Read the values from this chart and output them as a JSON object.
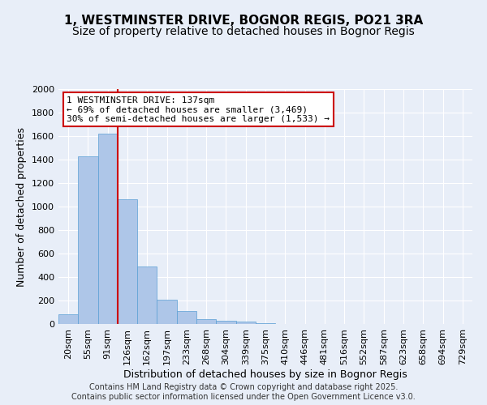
{
  "title_line1": "1, WESTMINSTER DRIVE, BOGNOR REGIS, PO21 3RA",
  "title_line2": "Size of property relative to detached houses in Bognor Regis",
  "xlabel": "Distribution of detached houses by size in Bognor Regis",
  "ylabel": "Number of detached properties",
  "bin_labels": [
    "20sqm",
    "55sqm",
    "91sqm",
    "126sqm",
    "162sqm",
    "197sqm",
    "233sqm",
    "268sqm",
    "304sqm",
    "339sqm",
    "375sqm",
    "410sqm",
    "446sqm",
    "481sqm",
    "516sqm",
    "552sqm",
    "587sqm",
    "623sqm",
    "658sqm",
    "694sqm",
    "729sqm"
  ],
  "bar_values": [
    85,
    1425,
    1620,
    1060,
    490,
    205,
    110,
    40,
    25,
    18,
    10,
    0,
    0,
    0,
    0,
    0,
    0,
    0,
    0,
    0,
    0
  ],
  "bar_color": "#aec6e8",
  "bar_edge_color": "#5a9fd4",
  "vline_x_index": 3,
  "vline_color": "#cc0000",
  "annotation_text": "1 WESTMINSTER DRIVE: 137sqm\n← 69% of detached houses are smaller (3,469)\n30% of semi-detached houses are larger (1,533) →",
  "annotation_box_color": "#ffffff",
  "annotation_box_edge_color": "#cc0000",
  "ylim": [
    0,
    2000
  ],
  "yticks": [
    0,
    200,
    400,
    600,
    800,
    1000,
    1200,
    1400,
    1600,
    1800,
    2000
  ],
  "background_color": "#e8eef8",
  "plot_background_color": "#e8eef8",
  "footer_text": "Contains HM Land Registry data © Crown copyright and database right 2025.\nContains public sector information licensed under the Open Government Licence v3.0.",
  "title_fontsize": 11,
  "subtitle_fontsize": 10,
  "axis_label_fontsize": 9,
  "tick_fontsize": 8,
  "annotation_fontsize": 8,
  "footer_fontsize": 7
}
